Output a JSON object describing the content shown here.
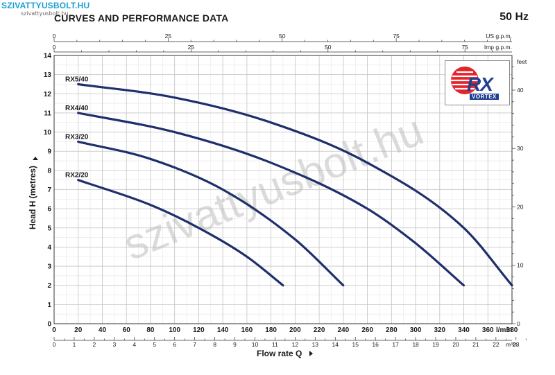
{
  "watermark": {
    "brand": "SZIVATTYUSBOLT.HU",
    "sub": "szivattyusbolt.hu",
    "diagonal": "szivattyusbolt.hu"
  },
  "header": {
    "title": "CURVES AND PERFORMANCE DATA",
    "frequency": "50 Hz"
  },
  "logo": {
    "text": "RX",
    "subtext": "VORTEX",
    "accent": "#e3242b",
    "brand": "#1f3f8f"
  },
  "chart_data": {
    "type": "line",
    "xlabel": "Flow rate Q",
    "ylabel": "Head H (metres)",
    "x_unit": "l/min",
    "xlim": [
      0,
      380
    ],
    "ylim": [
      0,
      14
    ],
    "x_ticks": [
      0,
      20,
      40,
      60,
      80,
      100,
      120,
      140,
      160,
      180,
      200,
      220,
      240,
      260,
      280,
      300,
      320,
      340,
      360,
      380
    ],
    "y_ticks": [
      0,
      1,
      2,
      3,
      4,
      5,
      6,
      7,
      8,
      9,
      10,
      11,
      12,
      13,
      14
    ],
    "grid": true,
    "secondary_axes": {
      "us_gpm": {
        "label": "US g.p.m.",
        "ticks": [
          0,
          25,
          50,
          75
        ]
      },
      "imp_gpm": {
        "label": "Imp g.p.m.",
        "ticks": [
          0,
          25,
          50,
          75
        ]
      },
      "m3h": {
        "label": "m³/h",
        "ticks": [
          0,
          1,
          2,
          3,
          4,
          5,
          6,
          7,
          8,
          9,
          10,
          11,
          12,
          13,
          14,
          15,
          16,
          17,
          18,
          19,
          20,
          21,
          22,
          23
        ]
      },
      "feet": {
        "label": "feet",
        "ticks": [
          0,
          10,
          20,
          30,
          40
        ]
      }
    },
    "series": [
      {
        "name": "RX5/40",
        "color": "#1f2f6b",
        "x": [
          20,
          100,
          180,
          260,
          340,
          380
        ],
        "y": [
          12.5,
          11.8,
          10.5,
          8.4,
          5.0,
          2.0
        ]
      },
      {
        "name": "RX4/40",
        "color": "#1f2f6b",
        "x": [
          20,
          100,
          180,
          260,
          300,
          340
        ],
        "y": [
          11.0,
          10.0,
          8.4,
          6.0,
          4.2,
          2.0
        ]
      },
      {
        "name": "RX3/20",
        "color": "#1f2f6b",
        "x": [
          20,
          80,
          140,
          200,
          240
        ],
        "y": [
          9.5,
          8.6,
          7.0,
          4.4,
          2.0
        ]
      },
      {
        "name": "RX2/20",
        "color": "#1f2f6b",
        "x": [
          20,
          80,
          120,
          160,
          190
        ],
        "y": [
          7.5,
          6.2,
          5.0,
          3.5,
          2.0
        ]
      }
    ]
  }
}
